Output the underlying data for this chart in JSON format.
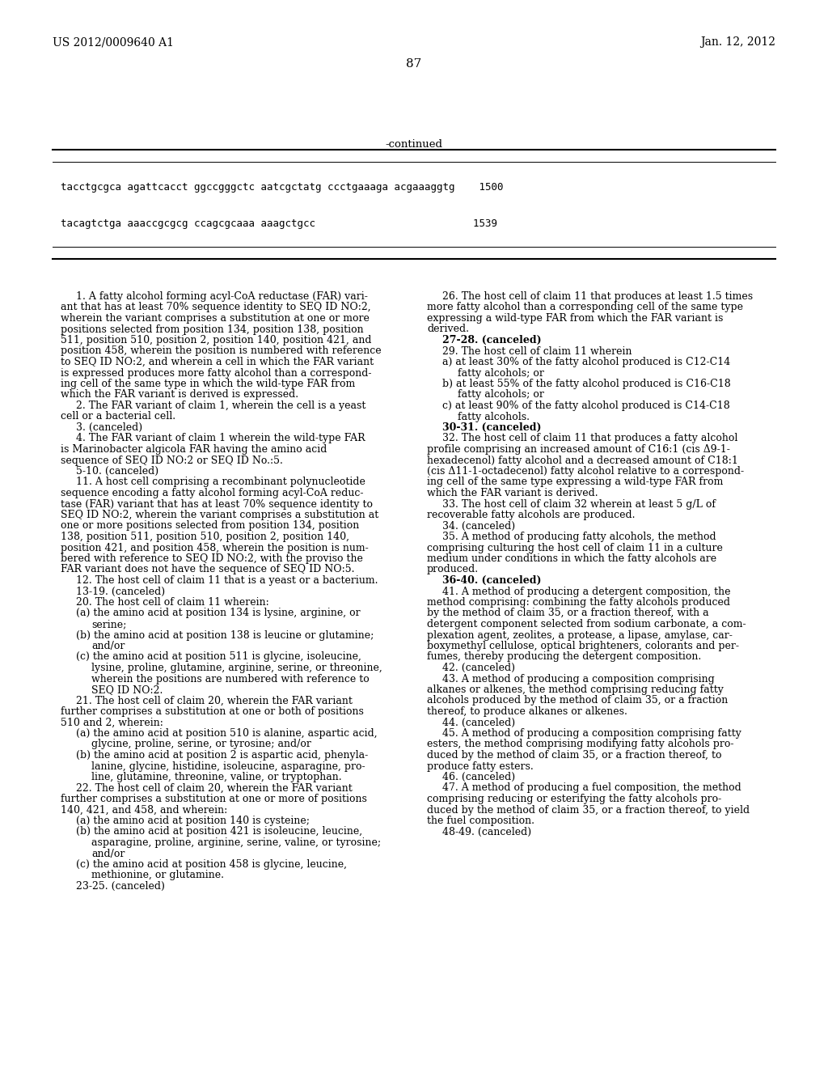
{
  "background_color": "#ffffff",
  "header_left": "US 2012/0009640 A1",
  "header_right": "Jan. 12, 2012",
  "page_number": "87",
  "continued_label": "-continued",
  "seq_line1": "tacctgcgca agattcacct ggccgggctc aatcgctatg ccctgaaaga acgaaaggtg    1500",
  "seq_line2": "tacagtctga aaaccgcgcg ccagcgcaaa aaagctgcc                          1539",
  "left_col": [
    {
      "indent": 4,
      "text": "1. A fatty alcohol forming acyl-CoA reductase (FAR) vari-"
    },
    {
      "indent": 0,
      "text": "ant that has at least 70% sequence identity to SEQ ID NO:2,"
    },
    {
      "indent": 0,
      "text": "wherein the variant comprises a substitution at one or more"
    },
    {
      "indent": 0,
      "text": "positions selected from position 134, position 138, position"
    },
    {
      "indent": 0,
      "text": "511, position 510, position 2, position 140, position 421, and"
    },
    {
      "indent": 0,
      "text": "position 458, wherein the position is numbered with reference"
    },
    {
      "indent": 0,
      "text": "to SEQ ID NO:2, and wherein a cell in which the FAR variant"
    },
    {
      "indent": 0,
      "text": "is expressed produces more fatty alcohol than a correspond-"
    },
    {
      "indent": 0,
      "text": "ing cell of the same type in which the wild-type FAR from"
    },
    {
      "indent": 0,
      "text": "which the FAR variant is derived is expressed."
    },
    {
      "indent": 4,
      "text": "2. The FAR variant of claim 1, wherein the cell is a yeast"
    },
    {
      "indent": 0,
      "text": "cell or a bacterial cell."
    },
    {
      "indent": 4,
      "text": "3. (canceled)"
    },
    {
      "indent": 4,
      "text": "4. The FAR variant of claim 1 wherein the wild-type FAR"
    },
    {
      "indent": 0,
      "text": "is Marinobacter algicola FAR having the amino acid",
      "italic_range": [
        3,
        23
      ]
    },
    {
      "indent": 0,
      "text": "sequence of SEQ ID NO:2 or SEQ ID No.:5."
    },
    {
      "indent": 4,
      "text": "5-10. (canceled)"
    },
    {
      "indent": 4,
      "text": "11. A host cell comprising a recombinant polynucleotide"
    },
    {
      "indent": 0,
      "text": "sequence encoding a fatty alcohol forming acyl-CoA reduc-"
    },
    {
      "indent": 0,
      "text": "tase (FAR) variant that has at least 70% sequence identity to"
    },
    {
      "indent": 0,
      "text": "SEQ ID NO:2, wherein the variant comprises a substitution at"
    },
    {
      "indent": 0,
      "text": "one or more positions selected from position 134, position"
    },
    {
      "indent": 0,
      "text": "138, position 511, position 510, position 2, position 140,"
    },
    {
      "indent": 0,
      "text": "position 421, and position 458, wherein the position is num-"
    },
    {
      "indent": 0,
      "text": "bered with reference to SEQ ID NO:2, with the proviso the"
    },
    {
      "indent": 0,
      "text": "FAR variant does not have the sequence of SEQ ID NO:5."
    },
    {
      "indent": 4,
      "text": "12. The host cell of claim 11 that is a yeast or a bacterium."
    },
    {
      "indent": 4,
      "text": "13-19. (canceled)"
    },
    {
      "indent": 4,
      "text": "20. The host cell of claim 11 wherein:"
    },
    {
      "indent": 4,
      "text": "(a) the amino acid at position 134 is lysine, arginine, or"
    },
    {
      "indent": 8,
      "text": "serine;"
    },
    {
      "indent": 4,
      "text": "(b) the amino acid at position 138 is leucine or glutamine;"
    },
    {
      "indent": 8,
      "text": "and/or"
    },
    {
      "indent": 4,
      "text": "(c) the amino acid at position 511 is glycine, isoleucine,"
    },
    {
      "indent": 8,
      "text": "lysine, proline, glutamine, arginine, serine, or threonine,"
    },
    {
      "indent": 8,
      "text": "wherein the positions are numbered with reference to"
    },
    {
      "indent": 8,
      "text": "SEQ ID NO:2."
    },
    {
      "indent": 4,
      "text": "21. The host cell of claim 20, wherein the FAR variant"
    },
    {
      "indent": 0,
      "text": "further comprises a substitution at one or both of positions"
    },
    {
      "indent": 0,
      "text": "510 and 2, wherein:"
    },
    {
      "indent": 4,
      "text": "(a) the amino acid at position 510 is alanine, aspartic acid,"
    },
    {
      "indent": 8,
      "text": "glycine, proline, serine, or tyrosine; and/or"
    },
    {
      "indent": 4,
      "text": "(b) the amino acid at position 2 is aspartic acid, phenyla-"
    },
    {
      "indent": 8,
      "text": "lanine, glycine, histidine, isoleucine, asparagine, pro-"
    },
    {
      "indent": 8,
      "text": "line, glutamine, threonine, valine, or tryptophan."
    },
    {
      "indent": 4,
      "text": "22. The host cell of claim 20, wherein the FAR variant"
    },
    {
      "indent": 0,
      "text": "further comprises a substitution at one or more of positions"
    },
    {
      "indent": 0,
      "text": "140, 421, and 458, and wherein:"
    },
    {
      "indent": 4,
      "text": "(a) the amino acid at position 140 is cysteine;"
    },
    {
      "indent": 4,
      "text": "(b) the amino acid at position 421 is isoleucine, leucine,"
    },
    {
      "indent": 8,
      "text": "asparagine, proline, arginine, serine, valine, or tyrosine;"
    },
    {
      "indent": 8,
      "text": "and/or"
    },
    {
      "indent": 4,
      "text": "(c) the amino acid at position 458 is glycine, leucine,"
    },
    {
      "indent": 8,
      "text": "methionine, or glutamine."
    },
    {
      "indent": 4,
      "text": "23-25. (canceled)"
    }
  ],
  "right_col": [
    {
      "indent": 4,
      "text": "26. The host cell of claim 11 that produces at least 1.5 times"
    },
    {
      "indent": 0,
      "text": "more fatty alcohol than a corresponding cell of the same type"
    },
    {
      "indent": 0,
      "text": "expressing a wild-type FAR from which the FAR variant is"
    },
    {
      "indent": 0,
      "text": "derived."
    },
    {
      "indent": 4,
      "text": "27-28. (canceled)",
      "bold": true
    },
    {
      "indent": 4,
      "text": "29. The host cell of claim 11 wherein"
    },
    {
      "indent": 4,
      "text": "a) at least 30% of the fatty alcohol produced is C12-C14"
    },
    {
      "indent": 8,
      "text": "fatty alcohols; or"
    },
    {
      "indent": 4,
      "text": "b) at least 55% of the fatty alcohol produced is C16-C18"
    },
    {
      "indent": 8,
      "text": "fatty alcohols; or"
    },
    {
      "indent": 4,
      "text": "c) at least 90% of the fatty alcohol produced is C14-C18"
    },
    {
      "indent": 8,
      "text": "fatty alcohols."
    },
    {
      "indent": 4,
      "text": "30-31. (canceled)",
      "bold": true
    },
    {
      "indent": 4,
      "text": "32. The host cell of claim 11 that produces a fatty alcohol"
    },
    {
      "indent": 0,
      "text": "profile comprising an increased amount of C16:1 (cis Δ9-1-"
    },
    {
      "indent": 0,
      "text": "hexadecenol) fatty alcohol and a decreased amount of C18:1"
    },
    {
      "indent": 0,
      "text": "(cis Δ11-1-octadecenol) fatty alcohol relative to a correspond-"
    },
    {
      "indent": 0,
      "text": "ing cell of the same type expressing a wild-type FAR from"
    },
    {
      "indent": 0,
      "text": "which the FAR variant is derived."
    },
    {
      "indent": 4,
      "text": "33. The host cell of claim 32 wherein at least 5 g/L of"
    },
    {
      "indent": 0,
      "text": "recoverable fatty alcohols are produced."
    },
    {
      "indent": 4,
      "text": "34. (canceled)"
    },
    {
      "indent": 4,
      "text": "35. A method of producing fatty alcohols, the method"
    },
    {
      "indent": 0,
      "text": "comprising culturing the host cell of claim 11 in a culture"
    },
    {
      "indent": 0,
      "text": "medium under conditions in which the fatty alcohols are"
    },
    {
      "indent": 0,
      "text": "produced."
    },
    {
      "indent": 4,
      "text": "36-40. (canceled)",
      "bold": true
    },
    {
      "indent": 4,
      "text": "41. A method of producing a detergent composition, the"
    },
    {
      "indent": 0,
      "text": "method comprising: combining the fatty alcohols produced"
    },
    {
      "indent": 0,
      "text": "by the method of claim 35, or a fraction thereof, with a"
    },
    {
      "indent": 0,
      "text": "detergent component selected from sodium carbonate, a com-"
    },
    {
      "indent": 0,
      "text": "plexation agent, zeolites, a protease, a lipase, amylase, car-"
    },
    {
      "indent": 0,
      "text": "boxymethyl cellulose, optical brighteners, colorants and per-"
    },
    {
      "indent": 0,
      "text": "fumes, thereby producing the detergent composition."
    },
    {
      "indent": 4,
      "text": "42. (canceled)"
    },
    {
      "indent": 4,
      "text": "43. A method of producing a composition comprising"
    },
    {
      "indent": 0,
      "text": "alkanes or alkenes, the method comprising reducing fatty"
    },
    {
      "indent": 0,
      "text": "alcohols produced by the method of claim 35, or a fraction"
    },
    {
      "indent": 0,
      "text": "thereof, to produce alkanes or alkenes."
    },
    {
      "indent": 4,
      "text": "44. (canceled)"
    },
    {
      "indent": 4,
      "text": "45. A method of producing a composition comprising fatty"
    },
    {
      "indent": 0,
      "text": "esters, the method comprising modifying fatty alcohols pro-"
    },
    {
      "indent": 0,
      "text": "duced by the method of claim 35, or a fraction thereof, to"
    },
    {
      "indent": 0,
      "text": "produce fatty esters."
    },
    {
      "indent": 4,
      "text": "46. (canceled)"
    },
    {
      "indent": 4,
      "text": "47. A method of producing a fuel composition, the method"
    },
    {
      "indent": 0,
      "text": "comprising reducing or esterifying the fatty alcohols pro-"
    },
    {
      "indent": 0,
      "text": "duced by the method of claim 35, or a fraction thereof, to yield"
    },
    {
      "indent": 0,
      "text": "the fuel composition."
    },
    {
      "indent": 4,
      "text": "48-49. (canceled)"
    }
  ]
}
